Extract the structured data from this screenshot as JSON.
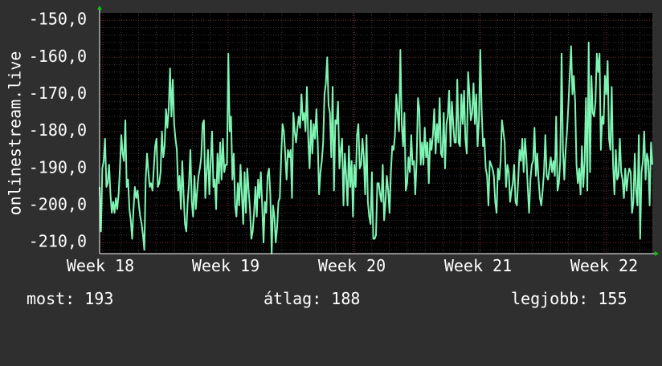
{
  "chart_data": {
    "type": "line",
    "title": "",
    "xlabel": "",
    "ylabel": "onlinestream.live",
    "x_ticks": [
      "Week 18",
      "Week 19",
      "Week 20",
      "Week 21",
      "Week 22"
    ],
    "y_ticks": [
      "-150,0",
      "-160,0",
      "-170,0",
      "-180,0",
      "-190,0",
      "-200,0",
      "-210,0"
    ],
    "ylim": [
      -213,
      -148
    ],
    "grid": true,
    "colors": {
      "line": "#7ff5b4",
      "background": "#000000",
      "grid": "#5a5a5a",
      "axis_arrow": "#00cc00"
    },
    "series": [
      {
        "values": [
          -195,
          -207,
          -190,
          -188,
          -182,
          -195,
          -194,
          -189,
          -197,
          -202,
          -199,
          -202,
          -198,
          -201,
          -197,
          -190,
          -181,
          -186,
          -188,
          -177,
          -195,
          -193,
          -201,
          -204,
          -209,
          -201,
          -195,
          -198,
          -196,
          -200,
          -203,
          -205,
          -208,
          -212,
          -193,
          -186,
          -191,
          -195,
          -194,
          -196,
          -190,
          -184,
          -182,
          -195,
          -194,
          -191,
          -180,
          -187,
          -184,
          -174,
          -179,
          -174,
          -163,
          -176,
          -166,
          -178,
          -182,
          -185,
          -196,
          -192,
          -201,
          -188,
          -197,
          -205,
          -207,
          -199,
          -194,
          -185,
          -199,
          -203,
          -192,
          -201,
          -196,
          -192,
          -190,
          -187,
          -178,
          -177,
          -198,
          -191,
          -185,
          -197,
          -188,
          -180,
          -195,
          -193,
          -201,
          -186,
          -194,
          -183,
          -193,
          -182,
          -191,
          -189,
          -189,
          -159,
          -180,
          -176,
          -193,
          -186,
          -200,
          -203,
          -194,
          -200,
          -189,
          -197,
          -205,
          -191,
          -202,
          -190,
          -196,
          -201,
          -209,
          -207,
          -202,
          -195,
          -203,
          -193,
          -198,
          -191,
          -200,
          -210,
          -199,
          -202,
          -192,
          -190,
          -197,
          -213,
          -200,
          -203,
          -210,
          -206,
          -199,
          -198,
          -187,
          -178,
          -180,
          -186,
          -193,
          -185,
          -187,
          -185,
          -198,
          -175,
          -180,
          -183,
          -179,
          -176,
          -179,
          -170,
          -177,
          -175,
          -180,
          -168,
          -182,
          -190,
          -177,
          -186,
          -178,
          -182,
          -174,
          -183,
          -197,
          -191,
          -188,
          -183,
          -170,
          -167,
          -160,
          -173,
          -175,
          -187,
          -168,
          -196,
          -177,
          -178,
          -172,
          -190,
          -185,
          -182,
          -200,
          -186,
          -192,
          -200,
          -184,
          -195,
          -188,
          -203,
          -189,
          -195,
          -181,
          -178,
          -190,
          -189,
          -182,
          -187,
          -197,
          -181,
          -199,
          -203,
          -205,
          -191,
          -209,
          -209,
          -208,
          -194,
          -194,
          -197,
          -199,
          -189,
          -204,
          -199,
          -192,
          -196,
          -202,
          -191,
          -184,
          -185,
          -181,
          -170,
          -175,
          -180,
          -158,
          -178,
          -184,
          -175,
          -196,
          -194,
          -187,
          -191,
          -181,
          -189,
          -188,
          -197,
          -188,
          -171,
          -174,
          -189,
          -183,
          -189,
          -179,
          -187,
          -183,
          -194,
          -182,
          -185,
          -181,
          -174,
          -186,
          -178,
          -183,
          -171,
          -186,
          -187,
          -175,
          -190,
          -178,
          -176,
          -169,
          -184,
          -172,
          -178,
          -183,
          -183,
          -166,
          -183,
          -184,
          -170,
          -178,
          -169,
          -182,
          -186,
          -164,
          -170,
          -177,
          -175,
          -167,
          -178,
          -170,
          -184,
          -177,
          -158,
          -174,
          -184,
          -182,
          -190,
          -192,
          -200,
          -188,
          -189,
          -190,
          -192,
          -199,
          -202,
          -190,
          -193,
          -188,
          -177,
          -180,
          -183,
          -195,
          -189,
          -191,
          -199,
          -196,
          -194,
          -189,
          -199,
          -200,
          -193,
          -185,
          -188,
          -182,
          -191,
          -182,
          -187,
          -195,
          -202,
          -193,
          -189,
          -188,
          -179,
          -192,
          -186,
          -193,
          -198,
          -200,
          -196,
          -191,
          -181,
          -192,
          -193,
          -190,
          -187,
          -191,
          -188,
          -192,
          -176,
          -196,
          -194,
          -188,
          -159,
          -185,
          -193,
          -185,
          -180,
          -173,
          -165,
          -157,
          -170,
          -165,
          -172,
          -189,
          -194,
          -190,
          -197,
          -184,
          -195,
          -188,
          -171,
          -196,
          -156,
          -191,
          -165,
          -175,
          -176,
          -172,
          -159,
          -164,
          -159,
          -185,
          -176,
          -178,
          -165,
          -170,
          -161,
          -182,
          -185,
          -168,
          -189,
          -197,
          -185,
          -193,
          -192,
          -182,
          -191,
          -193,
          -198,
          -190,
          -196,
          -192,
          -190,
          -191,
          -202,
          -199,
          -186,
          -196,
          -200,
          -181,
          -209,
          -191,
          -188,
          -180,
          -193,
          -186,
          -188,
          -200,
          -183,
          -189
        ]
      }
    ]
  },
  "stats": {
    "current": "most: 193",
    "average": "átlag: 188",
    "best": "legjobb: 155"
  }
}
